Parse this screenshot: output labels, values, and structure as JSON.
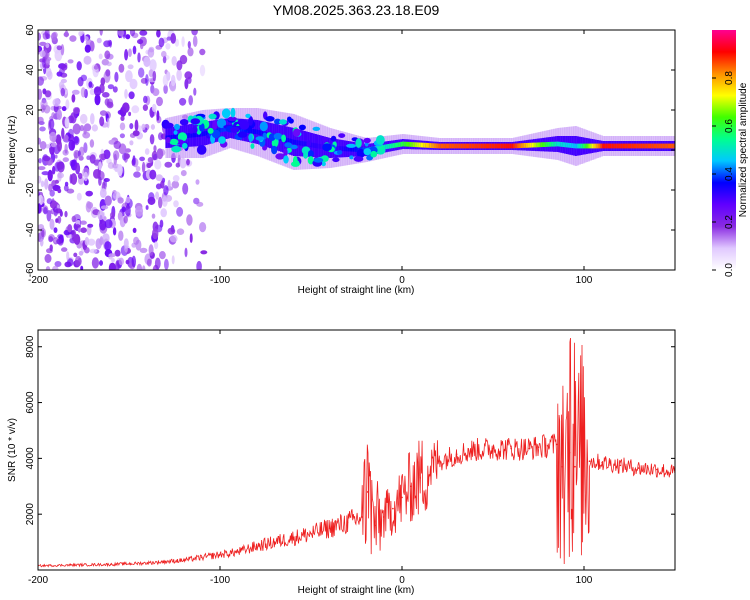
{
  "title": "YM08.2025.363.23.18.E09",
  "chart_data": [
    {
      "type": "heatmap",
      "name": "spectrogram",
      "xlabel": "Height of straight line (km)",
      "ylabel": "Frequency (Hz)",
      "xlim": [
        -200,
        150
      ],
      "ylim": [
        -60,
        60
      ],
      "xticks": [
        -200,
        -100,
        0,
        100
      ],
      "yticks": [
        -60,
        -40,
        -20,
        0,
        20,
        40,
        60
      ],
      "colorbar": {
        "label": "Normalized spectral amplitude",
        "range": [
          0.0,
          1.0
        ],
        "ticks": [
          "0.0",
          "0.2",
          "0.4",
          "0.6",
          "0.8"
        ],
        "tick_values": [
          0.0,
          0.2,
          0.4,
          0.6,
          0.8
        ],
        "colors": [
          "#ffffff",
          "#e0c8ff",
          "#8a2be2",
          "#6000ff",
          "#0000ff",
          "#00c8ff",
          "#00ff90",
          "#40ff00",
          "#ffff00",
          "#ff9000",
          "#ff0000",
          "#ff0090"
        ]
      },
      "noise_region_x": [
        -200,
        -105
      ],
      "band_path": [
        {
          "x": -130,
          "f": 6,
          "width": 10,
          "amp": 0.35
        },
        {
          "x": -110,
          "f": 8,
          "width": 12,
          "amp": 0.35
        },
        {
          "x": -95,
          "f": 11,
          "width": 10,
          "amp": 0.4
        },
        {
          "x": -80,
          "f": 9,
          "width": 12,
          "amp": 0.35
        },
        {
          "x": -60,
          "f": 4,
          "width": 14,
          "amp": 0.35
        },
        {
          "x": -40,
          "f": 1,
          "width": 10,
          "amp": 0.3
        },
        {
          "x": -20,
          "f": 0,
          "width": 6,
          "amp": 0.4
        },
        {
          "x": 0,
          "f": 3,
          "width": 5,
          "amp": 0.6
        },
        {
          "x": 20,
          "f": 2,
          "width": 4,
          "amp": 0.85
        },
        {
          "x": 60,
          "f": 2,
          "width": 4,
          "amp": 0.9
        },
        {
          "x": 85,
          "f": 3,
          "width": 8,
          "amp": 0.5
        },
        {
          "x": 95,
          "f": 2,
          "width": 10,
          "amp": 0.45
        },
        {
          "x": 110,
          "f": 2,
          "width": 5,
          "amp": 0.9
        },
        {
          "x": 150,
          "f": 2,
          "width": 5,
          "amp": 0.85
        }
      ]
    },
    {
      "type": "line",
      "name": "snr",
      "xlabel": "Height of straight line (km)",
      "ylabel": "SNR (10 * v/v)",
      "xlim": [
        -200,
        150
      ],
      "ylim": [
        0,
        8600
      ],
      "xticks": [
        -200,
        -100,
        0,
        100
      ],
      "yticks": [
        2000,
        4000,
        6000,
        8000
      ],
      "series": [
        {
          "name": "SNR",
          "color": "#ee2020",
          "x": [
            -200,
            -180,
            -160,
            -140,
            -130,
            -120,
            -110,
            -100,
            -90,
            -80,
            -70,
            -60,
            -50,
            -40,
            -30,
            -22,
            -19,
            -15,
            -10,
            -5,
            0,
            5,
            10,
            20,
            30,
            40,
            50,
            60,
            70,
            75,
            80,
            85,
            88,
            92,
            95,
            100,
            103,
            110,
            120,
            130,
            140,
            150
          ],
          "y": [
            150,
            180,
            200,
            250,
            300,
            350,
            450,
            550,
            650,
            850,
            1000,
            1150,
            1300,
            1500,
            1700,
            1900,
            2800,
            1600,
            1900,
            2200,
            2600,
            3000,
            3300,
            3900,
            4150,
            4300,
            4350,
            4350,
            4350,
            4400,
            4450,
            4500,
            3700,
            4200,
            3700,
            4400,
            3900,
            3850,
            3750,
            3650,
            3600,
            3500
          ]
        }
      ]
    }
  ]
}
